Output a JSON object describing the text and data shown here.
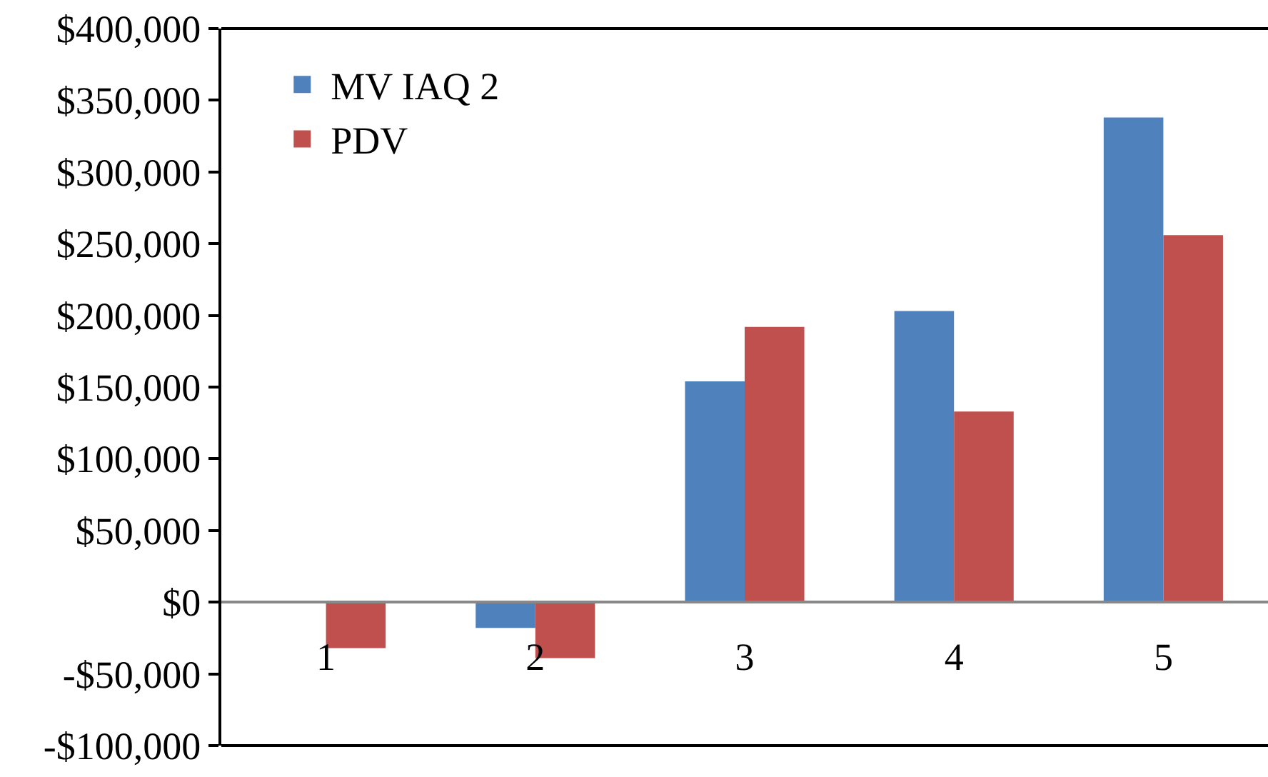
{
  "chart_data": {
    "type": "bar",
    "categories": [
      "1",
      "2",
      "3",
      "4",
      "5"
    ],
    "series": [
      {
        "name": "MV IAQ 2",
        "color": "#4f81bd",
        "values": [
          0,
          -18000,
          154000,
          203000,
          338000
        ]
      },
      {
        "name": "PDV",
        "color": "#c0504d",
        "values": [
          -32000,
          -39000,
          192000,
          133000,
          256000
        ]
      }
    ],
    "ylim": [
      -100000,
      400000
    ],
    "yticks": [
      {
        "value": -100000,
        "label": "-$100,000"
      },
      {
        "value": -50000,
        "label": "-$50,000"
      },
      {
        "value": 0,
        "label": "$0"
      },
      {
        "value": 50000,
        "label": "$50,000"
      },
      {
        "value": 100000,
        "label": "$100,000"
      },
      {
        "value": 150000,
        "label": "$150,000"
      },
      {
        "value": 200000,
        "label": "$200,000"
      },
      {
        "value": 250000,
        "label": "$250,000"
      },
      {
        "value": 300000,
        "label": "$300,000"
      },
      {
        "value": 350000,
        "label": "$350,000"
      },
      {
        "value": 400000,
        "label": "$400,000"
      }
    ],
    "legend": "top left"
  }
}
